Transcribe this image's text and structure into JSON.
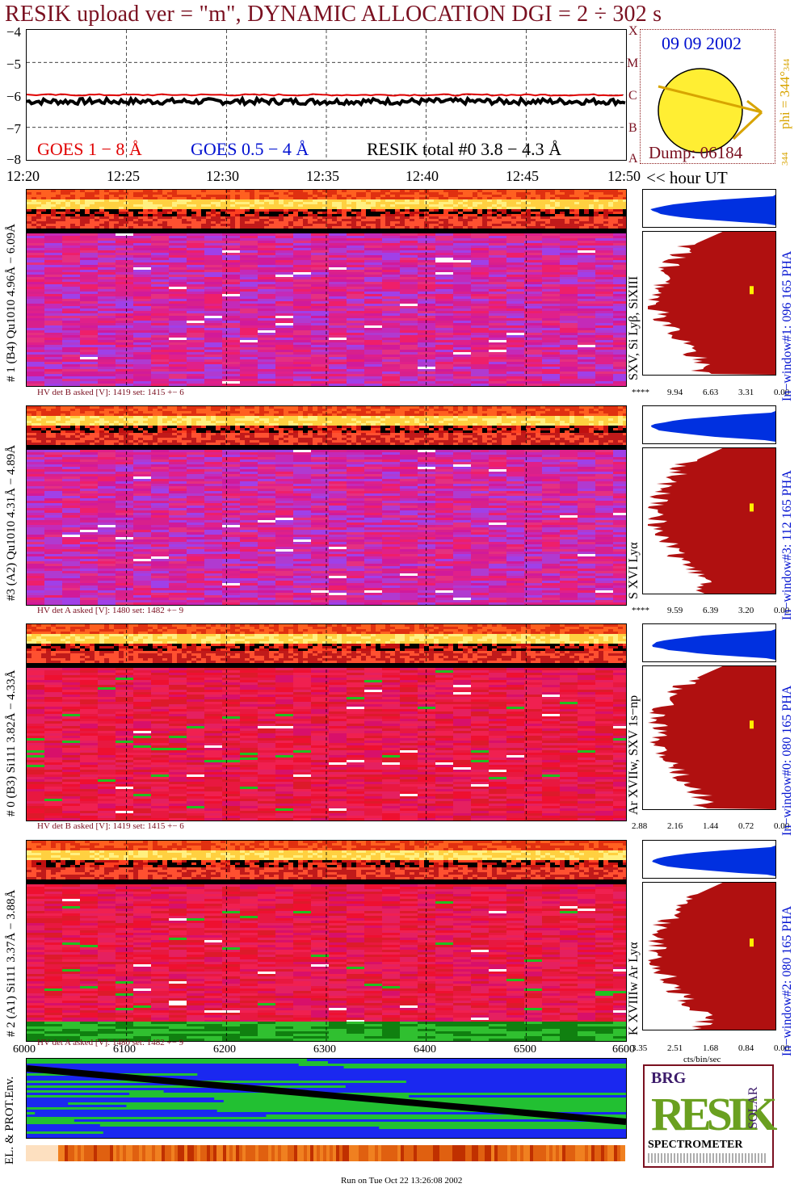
{
  "title": "RESIK upload ver = \"m\", DYNAMIC ALLOCATION  DGI =   2 ÷ 302 s",
  "goes": {
    "y_ticks": [
      "−4",
      "−5",
      "−6",
      "−7",
      "−8"
    ],
    "class_letters": [
      "X",
      "M",
      "C",
      "B",
      "A"
    ],
    "legend_goes_long": "GOES 1 − 8 Å",
    "legend_goes_short": "GOES 0.5 − 4 Å",
    "legend_resik": "RESIK total #0  3.8 − 4.3 Å",
    "colors": {
      "goes_long": "#e00000",
      "goes_short": "#0010d0",
      "resik": "#000000"
    }
  },
  "sun": {
    "date": "09 09 2002",
    "dump": "Dump: 06184",
    "phi": "phi = 344°",
    "phi_sub": "344",
    "phi_bottom": "344"
  },
  "time_axis": {
    "ticks": [
      "12:20",
      "12:25",
      "12:30",
      "12:35",
      "12:40",
      "12:45",
      "12:50"
    ],
    "unit": "<< hour UT"
  },
  "panels": [
    {
      "label": "# 1 (B4) Qu1010 4.96Å − 6.09Å",
      "hv": "HV det B asked [V]:  1419 set:  1415 +−   6",
      "line": "SXV, Si Lyβ, SiXIII",
      "window": "In−window#1:  096 165 PHA",
      "ticks": [
        "****",
        "9.94",
        "6.63",
        "3.31",
        "0.00"
      ]
    },
    {
      "label": "#3 (A2) Qu1010  4.31Å − 4.89Å",
      "hv": "HV det A asked [V]:  1480 set:  1482 +−   9",
      "line": "S XVI Lyα",
      "window": "In−window#3:  112 165 PHA",
      "ticks": [
        "****",
        "9.59",
        "6.39",
        "3.20",
        "0.00"
      ]
    },
    {
      "label": "# 0 (B3) Si111  3.82Å − 4.33Å",
      "hv": "HV det B asked [V]:  1419 set:  1415 +−   6",
      "line": "Ar XVIIw,  SXV 1s−np",
      "window": "In−window#0:  080 165 PHA",
      "ticks": [
        "2.88",
        "2.16",
        "1.44",
        "0.72",
        "0.00"
      ]
    },
    {
      "label": "# 2 (A1) Si111  3.37Å −  3.88Å",
      "hv": "HV det A asked [V]:  1480 set:  1482 +−   9",
      "line": "K XVIIIw  Ar Lyα",
      "window": "In−window#2:  080 165 PHA",
      "ticks": [
        "3.35",
        "2.51",
        "1.68",
        "0.84",
        "0.00"
      ]
    }
  ],
  "count_axis": {
    "ticks": [
      "6000",
      "6100",
      "6200",
      "6300",
      "6400",
      "6500",
      "6600"
    ],
    "unit": "cts/bin/sec"
  },
  "env_label": "EL. & PROT.Env.",
  "logo": {
    "letters": "RESIK",
    "top": "BRG",
    "right": "SOLAR",
    "name": "SPECTROMETER"
  },
  "footer": "Run on Tue Oct 22 13:26:08 2002",
  "chart_data": {
    "type": "heatmap",
    "title": "RESIK upload ver = \"m\", DYNAMIC ALLOCATION  DGI =   2 ÷ 302 s",
    "xlabel": "hour UT",
    "x_range": [
      "12:20",
      "12:50"
    ],
    "goes_log_flux_range": [
      -8,
      -4
    ],
    "series": [
      {
        "name": "GOES 1 − 8 Å",
        "approx_log_flux": -6.0
      },
      {
        "name": "RESIK total #0  3.8 − 4.3 Å",
        "approx_log_flux": -6.2
      }
    ]
  }
}
